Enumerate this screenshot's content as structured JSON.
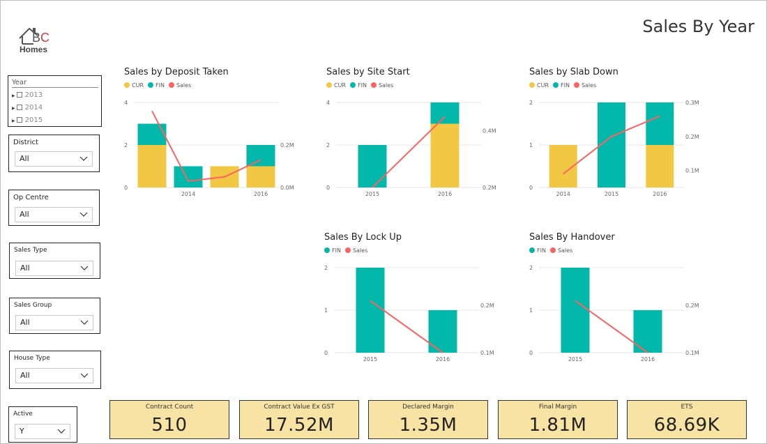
{
  "page": {
    "title": "Sales By Year"
  },
  "logo": {
    "text_bc": "BC",
    "text_homes": "Homes"
  },
  "colors": {
    "cur": "#f2c744",
    "fin": "#01b8aa",
    "sales": "#fd625e"
  },
  "year_slicer": {
    "title": "Year",
    "items": [
      "2013",
      "2014",
      "2015"
    ]
  },
  "slicers": {
    "district": {
      "title": "District",
      "value": "All"
    },
    "op_centre": {
      "title": "Op Centre",
      "value": "All"
    },
    "sales_type": {
      "title": "Sales Type",
      "value": "All"
    },
    "sales_group": {
      "title": "Sales Group",
      "value": "All"
    },
    "house_type": {
      "title": "House Type",
      "value": "All"
    },
    "active": {
      "title": "Active",
      "value": "Y"
    }
  },
  "legend_labels": {
    "cur": "CUR",
    "fin": "FIN",
    "sales": "Sales"
  },
  "chart_data": [
    {
      "type": "bar",
      "title": "Sales by Deposit Taken",
      "legend": [
        "CUR",
        "FIN",
        "Sales"
      ],
      "x_tick_labels": [
        "",
        "2014",
        "",
        "2016"
      ],
      "ylim": [
        0,
        4
      ],
      "y_ticks": [
        "0",
        "2",
        "4"
      ],
      "y2_ticks": [
        "0.0M",
        "0.2M"
      ],
      "series": [
        {
          "name": "CUR",
          "values": [
            2,
            0,
            1,
            1
          ]
        },
        {
          "name": "FIN",
          "values": [
            1,
            1,
            0,
            1
          ]
        },
        {
          "name": "Sales",
          "values": [
            0.36,
            0.03,
            0.05,
            0.13
          ]
        }
      ]
    },
    {
      "type": "bar",
      "title": "Sales by Site Start",
      "legend": [
        "CUR",
        "FIN",
        "Sales"
      ],
      "x_tick_labels": [
        "2015",
        "2016"
      ],
      "ylim": [
        0,
        4
      ],
      "y_ticks": [
        "0",
        "2",
        "4"
      ],
      "y2_ticks": [
        "0.2M",
        "0.4M"
      ],
      "series": [
        {
          "name": "CUR",
          "values": [
            0,
            3
          ]
        },
        {
          "name": "FIN",
          "values": [
            2,
            1
          ]
        },
        {
          "name": "Sales",
          "values": [
            0.2,
            0.45
          ]
        }
      ]
    },
    {
      "type": "bar",
      "title": "Sales by Slab Down",
      "legend": [
        "CUR",
        "FIN",
        "Sales"
      ],
      "x_tick_labels": [
        "2014",
        "2015",
        "2016"
      ],
      "ylim": [
        0,
        2
      ],
      "y_ticks": [
        "0",
        "1",
        "2"
      ],
      "y2_ticks": [
        "0.1M",
        "0.2M",
        "0.3M"
      ],
      "series": [
        {
          "name": "CUR",
          "values": [
            1,
            0,
            1
          ]
        },
        {
          "name": "FIN",
          "values": [
            0,
            2,
            1
          ]
        },
        {
          "name": "Sales",
          "values": [
            0.09,
            0.2,
            0.26
          ]
        }
      ]
    },
    {
      "type": "bar",
      "title": "Sales By Lock Up",
      "legend": [
        "FIN",
        "Sales"
      ],
      "x_tick_labels": [
        "2015",
        "2016"
      ],
      "ylim": [
        0,
        2
      ],
      "y_ticks": [
        "0",
        "1",
        "2"
      ],
      "y2_ticks": [
        "0.1M",
        "0.2M"
      ],
      "series": [
        {
          "name": "FIN",
          "values": [
            2,
            1
          ]
        },
        {
          "name": "Sales",
          "values": [
            0.21,
            0.1
          ]
        }
      ]
    },
    {
      "type": "bar",
      "title": "Sales By Handover",
      "legend": [
        "FIN",
        "Sales"
      ],
      "x_tick_labels": [
        "2015",
        "2016"
      ],
      "ylim": [
        0,
        2
      ],
      "y_ticks": [
        "0",
        "1",
        "2"
      ],
      "y2_ticks": [
        "0.1M",
        "0.2M"
      ],
      "series": [
        {
          "name": "FIN",
          "values": [
            2,
            1
          ]
        },
        {
          "name": "Sales",
          "values": [
            0.21,
            0.1
          ]
        }
      ]
    }
  ],
  "kpis": [
    {
      "label": "Contract Count",
      "value": "510"
    },
    {
      "label": "Contract Value Ex GST",
      "value": "17.52M"
    },
    {
      "label": "Declared Margin",
      "value": "1.35M"
    },
    {
      "label": "Final Margin",
      "value": "1.81M"
    },
    {
      "label": "ETS",
      "value": "68.69K"
    }
  ]
}
